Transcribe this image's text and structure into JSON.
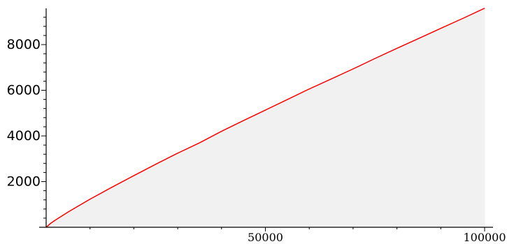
{
  "chart_data": {
    "type": "area",
    "title": "",
    "xlabel": "",
    "ylabel": "",
    "xlim": [
      0,
      100000
    ],
    "ylim": [
      0,
      9800
    ],
    "x_ticks": [
      50000,
      100000
    ],
    "x_tick_labels": [
      "50000",
      "100000"
    ],
    "y_ticks": [
      2000,
      4000,
      6000,
      8000
    ],
    "y_tick_labels": [
      "2000",
      "4000",
      "6000",
      "8000"
    ],
    "x_minor_step": 10000,
    "y_minor_step": 400,
    "grid": false,
    "series": [
      {
        "color": "#ff0000",
        "fill": "#f1f1f1",
        "x": [
          0,
          1000,
          2000,
          5000,
          10000,
          15000,
          20000,
          25000,
          30000,
          35000,
          40000,
          45000,
          50000,
          55000,
          60000,
          65000,
          70000,
          75000,
          80000,
          85000,
          90000,
          95000,
          100000
        ],
        "y": [
          0,
          168,
          303,
          669,
          1229,
          1754,
          2262,
          2762,
          3245,
          3700,
          4203,
          4675,
          5133,
          5592,
          6057,
          6493,
          6935,
          7393,
          7837,
          8271,
          8713,
          9145,
          9592
        ]
      }
    ]
  }
}
